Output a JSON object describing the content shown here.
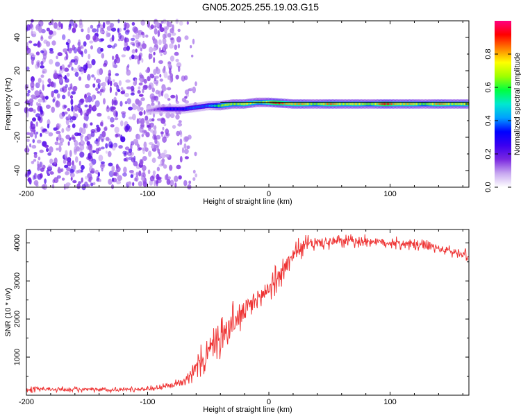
{
  "figure": {
    "title": "GN05.2025.255.19.03.G15"
  },
  "chart_data": [
    {
      "type": "heatmap",
      "title": "",
      "xlabel": "Height of straight line (km)",
      "ylabel": "Frequency (Hz)",
      "xlim": [
        -200,
        165
      ],
      "ylim": [
        -50,
        50
      ],
      "xticks": [
        -200,
        -100,
        0,
        100
      ],
      "xtick_labels": [
        "-200",
        "-100",
        "0",
        "100"
      ],
      "yticks": [
        -40,
        -20,
        0,
        20,
        40
      ],
      "ytick_labels": [
        "-40",
        "-20",
        "0",
        "20",
        "40"
      ],
      "colorbar": {
        "label": "Normalized spectral amplitude",
        "range": [
          0,
          1
        ],
        "ticks": [
          0,
          0.2,
          0.4,
          0.6,
          0.8
        ],
        "tick_labels": [
          "0.0",
          "0.2",
          "0.4",
          "0.6",
          "0.8"
        ],
        "colormap": [
          "#ffffff",
          "#c8a8f0",
          "#7a28e0",
          "#3c00f0",
          "#0000ff",
          "#00a0ff",
          "#00e8d0",
          "#00ff40",
          "#a0ff00",
          "#ffff00",
          "#ff8000",
          "#ff0000",
          "#ff0080"
        ]
      },
      "ridge": {
        "description_values": "dominant frequency near 0 Hz from -95 km to 165 km",
        "x": [
          -100,
          -90,
          -80,
          -70,
          -60,
          -50,
          -40,
          -30,
          -20,
          -10,
          0,
          20,
          40,
          60,
          80,
          100,
          120,
          140,
          165
        ],
        "freq": [
          -4,
          -3,
          -3,
          -3,
          -2,
          -1,
          -1,
          0,
          0,
          1,
          1,
          0,
          0,
          0,
          0,
          0,
          0,
          0,
          0
        ],
        "amplitude": [
          0.15,
          0.25,
          0.35,
          0.4,
          0.45,
          0.55,
          0.65,
          0.8,
          0.85,
          0.9,
          0.95,
          0.95,
          0.9,
          0.85,
          0.9,
          0.95,
          0.9,
          0.85,
          0.85
        ]
      },
      "noise_region": {
        "x_range": [
          -200,
          -60
        ],
        "freq_range": [
          -50,
          50
        ]
      },
      "reference_line_freq": 1
    },
    {
      "type": "line",
      "title": "",
      "xlabel": "Height of straight line (km)",
      "ylabel": "SNR (10 * v/v)",
      "xlim": [
        -200,
        165
      ],
      "ylim": [
        0,
        4350
      ],
      "xticks": [
        -200,
        -100,
        0,
        100
      ],
      "xtick_labels": [
        "-200",
        "-100",
        "0",
        "100"
      ],
      "yticks": [
        1000,
        2000,
        3000,
        4000
      ],
      "ytick_labels": [
        "1000",
        "2000",
        "3000",
        "4000"
      ],
      "series": [
        {
          "name": "SNR",
          "color": "#ee3333",
          "x": [
            -200,
            -180,
            -160,
            -140,
            -120,
            -100,
            -90,
            -80,
            -70,
            -60,
            -55,
            -50,
            -40,
            -30,
            -20,
            -10,
            0,
            10,
            20,
            30,
            40,
            60,
            80,
            100,
            120,
            140,
            160,
            165
          ],
          "y": [
            150,
            150,
            150,
            140,
            150,
            170,
            200,
            250,
            400,
            700,
            900,
            1100,
            1500,
            1900,
            2200,
            2500,
            2800,
            3200,
            3700,
            3950,
            4000,
            4030,
            4050,
            4000,
            3950,
            3850,
            3700,
            3650
          ],
          "noise": [
            80,
            80,
            80,
            80,
            80,
            80,
            90,
            100,
            150,
            350,
            500,
            550,
            600,
            600,
            550,
            500,
            400,
            400,
            350,
            300,
            250,
            200,
            180,
            180,
            180,
            180,
            180,
            180
          ]
        }
      ]
    }
  ]
}
